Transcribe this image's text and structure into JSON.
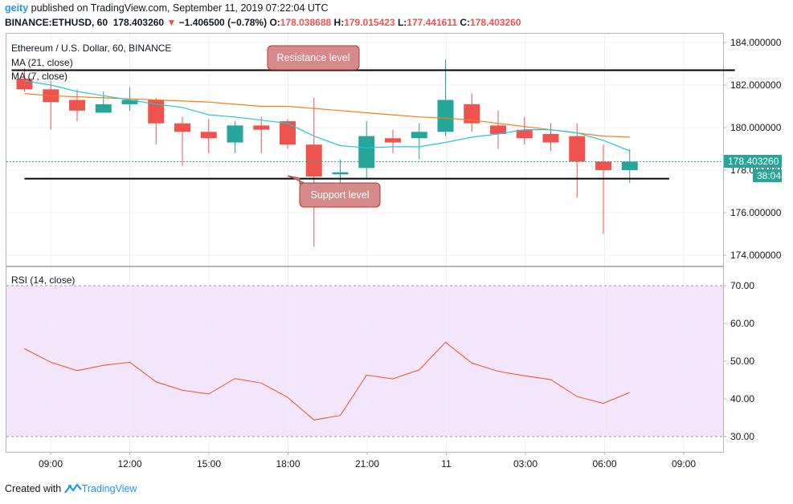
{
  "header": {
    "user": "geity",
    "published": " published on TradingView.com, September 11, 2019 07:22:04 UTC",
    "symbol": "BINANCE:ETHUSD, 60",
    "last": "178.403260",
    "change": "−1.406500 (−0.78%)",
    "o_label": "O:",
    "o_value": "178.038688",
    "h_label": "H:",
    "h_value": "179.015423",
    "l_label": "L:",
    "l_value": "177.441611",
    "c_label": "C:",
    "c_value": "178.403260"
  },
  "footer": {
    "created_with": "Created with",
    "brand": "TradingView"
  },
  "colors": {
    "up": "#26a69a",
    "down": "#ef5350",
    "ma21": "#f57f17",
    "ma7": "#26c6da",
    "rsi_line": "#f4511e",
    "rsi_band": "#f3e5fc",
    "annot_fill": "#d68a8a",
    "annot_stroke": "#a83a3a"
  },
  "chart_data": [
    {
      "type": "candlestick",
      "title": "Ethereum / U.S. Dollar, 60, BINANCE",
      "indicators": [
        "MA (21, close)",
        "MA (7, close)"
      ],
      "x_ticks": [
        "09:00",
        "12:00",
        "15:00",
        "18:00",
        "21:00",
        "11",
        "03:00",
        "06:00",
        "09:00"
      ],
      "y_ticks": [
        "184.000000",
        "182.000000",
        "180.000000",
        "178.000000",
        "176.000000",
        "174.000000"
      ],
      "ylim": [
        173.5,
        184.5
      ],
      "last_price_label": "178.403260",
      "countdown_label": "38:04",
      "candles": [
        {
          "o": 182.3,
          "h": 182.8,
          "l": 181.7,
          "c": 181.8
        },
        {
          "o": 181.8,
          "h": 182.2,
          "l": 179.9,
          "c": 181.2
        },
        {
          "o": 181.3,
          "h": 181.8,
          "l": 180.3,
          "c": 180.8
        },
        {
          "o": 180.7,
          "h": 181.7,
          "l": 180.7,
          "c": 181.1
        },
        {
          "o": 181.1,
          "h": 181.9,
          "l": 180.8,
          "c": 181.3
        },
        {
          "o": 181.3,
          "h": 181.4,
          "l": 179.2,
          "c": 180.2
        },
        {
          "o": 180.2,
          "h": 180.5,
          "l": 178.2,
          "c": 179.8
        },
        {
          "o": 179.8,
          "h": 180.4,
          "l": 178.8,
          "c": 179.5
        },
        {
          "o": 179.3,
          "h": 180.3,
          "l": 178.8,
          "c": 180.1
        },
        {
          "o": 180.1,
          "h": 180.5,
          "l": 178.8,
          "c": 179.9
        },
        {
          "o": 180.3,
          "h": 180.4,
          "l": 179.0,
          "c": 179.2
        },
        {
          "o": 179.2,
          "h": 181.4,
          "l": 174.4,
          "c": 177.7
        },
        {
          "o": 177.8,
          "h": 178.5,
          "l": 177.1,
          "c": 177.9
        },
        {
          "o": 178.1,
          "h": 180.3,
          "l": 177.6,
          "c": 179.6
        },
        {
          "o": 179.5,
          "h": 179.9,
          "l": 178.8,
          "c": 179.3
        },
        {
          "o": 179.5,
          "h": 180.2,
          "l": 178.5,
          "c": 179.8
        },
        {
          "o": 179.8,
          "h": 183.2,
          "l": 179.6,
          "c": 181.3
        },
        {
          "o": 181.1,
          "h": 181.6,
          "l": 179.8,
          "c": 180.2
        },
        {
          "o": 180.1,
          "h": 180.8,
          "l": 179.0,
          "c": 179.7
        },
        {
          "o": 179.9,
          "h": 180.5,
          "l": 179.2,
          "c": 179.5
        },
        {
          "o": 179.7,
          "h": 180.2,
          "l": 178.9,
          "c": 179.3
        },
        {
          "o": 179.6,
          "h": 180.2,
          "l": 176.7,
          "c": 178.4
        },
        {
          "o": 178.4,
          "h": 179.2,
          "l": 175.0,
          "c": 178.0
        },
        {
          "o": 178.0,
          "h": 179.0,
          "l": 177.4,
          "c": 178.4
        }
      ],
      "ma21": [
        181.6,
        181.5,
        181.45,
        181.4,
        181.35,
        181.3,
        181.25,
        181.2,
        181.1,
        181.0,
        181.0,
        180.9,
        180.8,
        180.7,
        180.6,
        180.5,
        180.45,
        180.35,
        180.2,
        180.05,
        179.9,
        179.75,
        179.6,
        179.55
      ],
      "ma7": [
        182.2,
        182.0,
        181.7,
        181.5,
        181.3,
        181.1,
        180.95,
        180.6,
        180.5,
        180.35,
        180.2,
        179.6,
        179.15,
        179.05,
        179.1,
        179.1,
        179.3,
        179.55,
        179.7,
        179.9,
        179.9,
        179.75,
        179.4,
        178.9
      ],
      "resistance": {
        "label": "Resistance level",
        "from": {
          "x": 0,
          "y": 182.7
        },
        "to": {
          "x": 27,
          "y": 182.7
        }
      },
      "support": {
        "label": "Support level",
        "from": {
          "x": 0,
          "y": 177.6
        },
        "to": {
          "x": 24.5,
          "y": 177.6
        }
      }
    },
    {
      "type": "line",
      "title": "RSI (14, close)",
      "y_ticks": [
        "70.00",
        "60.00",
        "50.00",
        "40.00",
        "30.00"
      ],
      "ylim": [
        25,
        75
      ],
      "band": [
        30,
        70
      ],
      "values": [
        53.3,
        49.7,
        47.5,
        48.9,
        49.7,
        44.5,
        42.3,
        41.3,
        45.4,
        44.2,
        40.4,
        34.4,
        35.6,
        46.3,
        45.3,
        47.7,
        55.0,
        49.5,
        47.3,
        46.1,
        45.1,
        40.6,
        38.8,
        41.7
      ]
    }
  ]
}
